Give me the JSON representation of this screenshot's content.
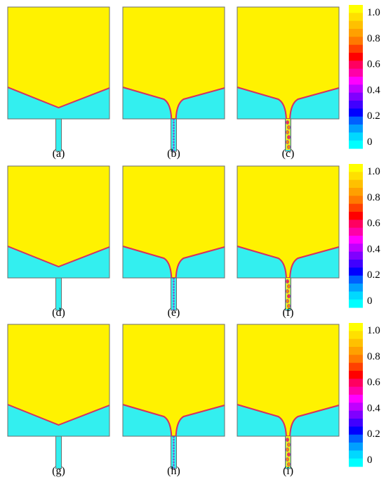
{
  "colors": {
    "fluid_top": "#fff200",
    "fluid_bottom": "#33efef",
    "interface": "#ff2a2a",
    "interface_inner": "#7a3bd9",
    "border": "#6e6e6e"
  },
  "panels": [
    {
      "id": "a",
      "label": "(a)",
      "neck": 0.0,
      "channel": "plain"
    },
    {
      "id": "b",
      "label": "(b)",
      "neck": 0.8,
      "channel": "filament"
    },
    {
      "id": "c",
      "label": "(c)",
      "neck": 0.9,
      "channel": "droplets"
    },
    {
      "id": "d",
      "label": "(d)",
      "neck": 0.0,
      "channel": "plain"
    },
    {
      "id": "e",
      "label": "(e)",
      "neck": 0.8,
      "channel": "filament"
    },
    {
      "id": "f",
      "label": "(f)",
      "neck": 0.9,
      "channel": "droplets"
    },
    {
      "id": "g",
      "label": "(g)",
      "neck": 0.0,
      "channel": "plain"
    },
    {
      "id": "h",
      "label": "(h)",
      "neck": 0.8,
      "channel": "filament"
    },
    {
      "id": "i",
      "label": "(i)",
      "neck": 0.9,
      "channel": "droplets"
    }
  ],
  "colorbar": {
    "ticks": [
      "1.0",
      "0.8",
      "0.6",
      "0.4",
      "0.2",
      "0"
    ],
    "stops": [
      "#ffff00",
      "#ffe000",
      "#ffc000",
      "#ffa000",
      "#ff7a00",
      "#ff4000",
      "#ff0000",
      "#ff0060",
      "#ff00a8",
      "#ff00ff",
      "#c000ff",
      "#8000ff",
      "#4000ff",
      "#0000ff",
      "#0060ff",
      "#00a0ff",
      "#00d8ff",
      "#00ffff"
    ]
  }
}
